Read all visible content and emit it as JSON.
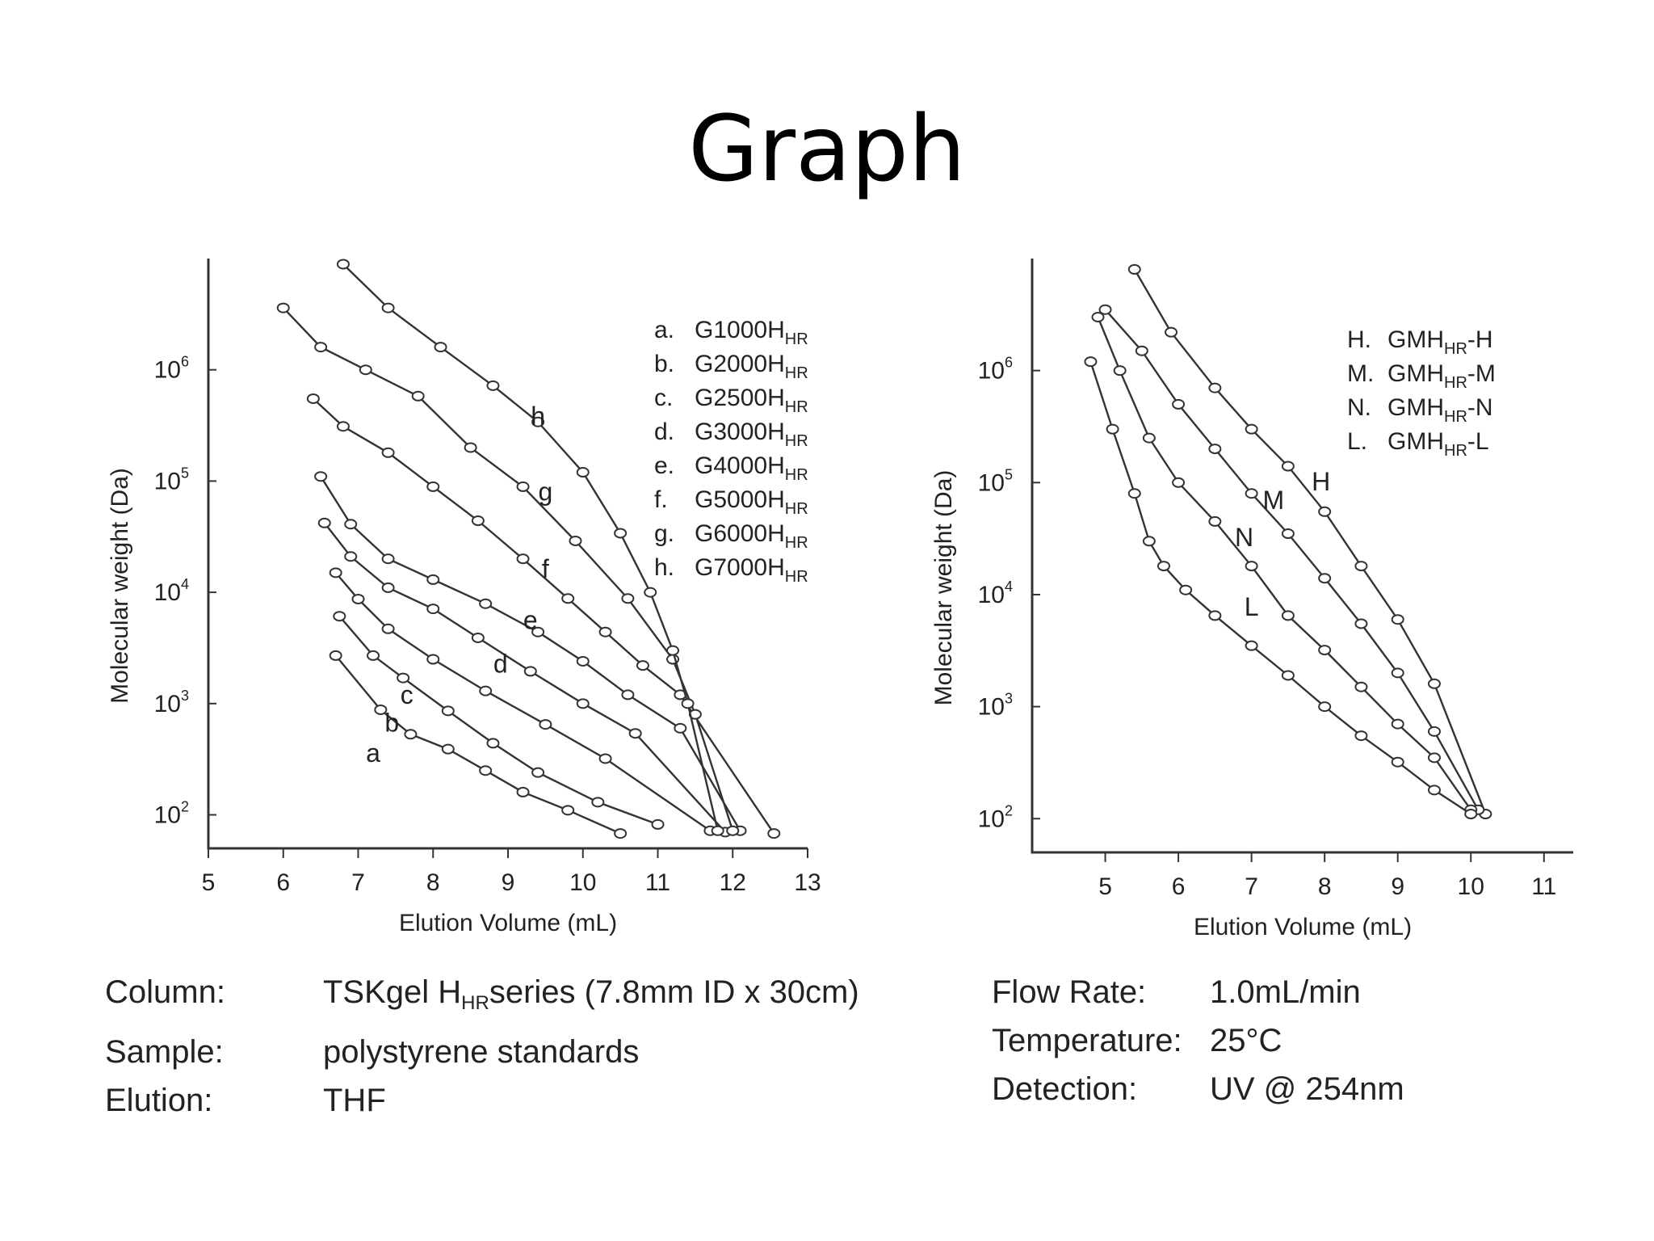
{
  "slide": {
    "title": "Graph"
  },
  "chart_data": [
    {
      "type": "line",
      "xlabel": "Elution Volume (mL)",
      "ylabel": "Molecular weight (Da)",
      "xlim": [
        5,
        13
      ],
      "ylim": [
        50,
        10000000
      ],
      "yscale": "log",
      "x_ticks": [
        "5",
        "6",
        "7",
        "8",
        "9",
        "10",
        "11",
        "12",
        "13"
      ],
      "y_ticks": [
        {
          "base": "10",
          "exp": "2",
          "value": 100
        },
        {
          "base": "10",
          "exp": "3",
          "value": 1000
        },
        {
          "base": "10",
          "exp": "4",
          "value": 10000
        },
        {
          "base": "10",
          "exp": "5",
          "value": 100000
        },
        {
          "base": "10",
          "exp": "6",
          "value": 1000000
        }
      ],
      "grid": false,
      "legend_position": "top-right",
      "legend": [
        {
          "key": "a.",
          "prefix": "G1000H",
          "sub": "HR",
          "suffix": ""
        },
        {
          "key": "b.",
          "prefix": "G2000H",
          "sub": "HR",
          "suffix": ""
        },
        {
          "key": "c.",
          "prefix": "G2500H",
          "sub": "HR",
          "suffix": ""
        },
        {
          "key": "d.",
          "prefix": "G3000H",
          "sub": "HR",
          "suffix": ""
        },
        {
          "key": "e.",
          "prefix": "G4000H",
          "sub": "HR",
          "suffix": ""
        },
        {
          "key": "f.",
          "prefix": "G5000H",
          "sub": "HR",
          "suffix": ""
        },
        {
          "key": "g.",
          "prefix": "G6000H",
          "sub": "HR",
          "suffix": ""
        },
        {
          "key": "h.",
          "prefix": "G7000H",
          "sub": "HR",
          "suffix": ""
        }
      ],
      "series": [
        {
          "name": "a",
          "label_at": [
            7.2,
            300
          ],
          "x": [
            6.7,
            7.3,
            7.7,
            8.2,
            8.7,
            9.2,
            9.8,
            10.5
          ],
          "y": [
            2700,
            880,
            530,
            390,
            250,
            160,
            110,
            68
          ]
        },
        {
          "name": "b",
          "label_at": [
            7.45,
            560
          ],
          "x": [
            6.75,
            7.2,
            7.6,
            8.2,
            8.8,
            9.4,
            10.2,
            11.0
          ],
          "y": [
            6100,
            2700,
            1700,
            860,
            440,
            240,
            130,
            82
          ]
        },
        {
          "name": "c",
          "label_at": [
            7.65,
            1000
          ],
          "x": [
            6.7,
            7.0,
            7.4,
            8.0,
            8.7,
            9.5,
            10.3,
            11.7
          ],
          "y": [
            15000,
            8700,
            4700,
            2500,
            1300,
            650,
            320,
            72
          ]
        },
        {
          "name": "d",
          "label_at": [
            8.9,
            1900
          ],
          "x": [
            6.55,
            6.9,
            7.4,
            8.0,
            8.6,
            9.3,
            10.0,
            10.7,
            11.9
          ],
          "y": [
            42000,
            21000,
            11000,
            7100,
            3900,
            1950,
            1000,
            540,
            70
          ]
        },
        {
          "name": "e",
          "label_at": [
            9.3,
            4700
          ],
          "x": [
            6.5,
            6.9,
            7.4,
            8.0,
            8.7,
            9.4,
            10.0,
            10.6,
            11.3,
            12.1
          ],
          "y": [
            110000,
            41000,
            20000,
            13000,
            7900,
            4400,
            2400,
            1200,
            600,
            72
          ]
        },
        {
          "name": "f",
          "label_at": [
            9.5,
            13500
          ],
          "x": [
            6.4,
            6.8,
            7.4,
            8.0,
            8.6,
            9.2,
            9.8,
            10.3,
            10.8,
            11.3,
            12.55
          ],
          "y": [
            550000,
            310000,
            180000,
            89000,
            44000,
            20000,
            8800,
            4400,
            2200,
            1200,
            68
          ]
        },
        {
          "name": "g",
          "label_at": [
            9.5,
            67000
          ],
          "x": [
            6.0,
            6.5,
            7.1,
            7.8,
            8.5,
            9.2,
            9.9,
            10.6,
            11.2,
            11.5,
            12.0
          ],
          "y": [
            3600000,
            1600000,
            1000000,
            580000,
            200000,
            89000,
            29000,
            8800,
            2500,
            800,
            72
          ]
        },
        {
          "name": "h",
          "label_at": [
            9.4,
            320000
          ],
          "x": [
            6.8,
            7.4,
            8.1,
            8.8,
            9.4,
            10.0,
            10.5,
            10.9,
            11.2,
            11.4,
            11.8
          ],
          "y": [
            8900000,
            3600000,
            1600000,
            720000,
            340000,
            120000,
            34000,
            10000,
            3000,
            1000,
            72
          ]
        }
      ]
    },
    {
      "type": "line",
      "xlabel": "Elution Volume (mL)",
      "ylabel": "Molecular weight (Da)",
      "xlim": [
        4,
        11.4
      ],
      "ylim": [
        50,
        10000000
      ],
      "yscale": "log",
      "x_ticks": [
        "5",
        "6",
        "7",
        "8",
        "9",
        "10",
        "11"
      ],
      "y_ticks": [
        {
          "base": "10",
          "exp": "2",
          "value": 100
        },
        {
          "base": "10",
          "exp": "3",
          "value": 1000
        },
        {
          "base": "10",
          "exp": "4",
          "value": 10000
        },
        {
          "base": "10",
          "exp": "5",
          "value": 100000
        },
        {
          "base": "10",
          "exp": "6",
          "value": 1000000
        }
      ],
      "grid": false,
      "legend_position": "top-right",
      "legend": [
        {
          "key": "H.",
          "prefix": "GMH",
          "sub": "HR",
          "suffix": "-H"
        },
        {
          "key": "M.",
          "prefix": "GMH",
          "sub": "HR",
          "suffix": "-M"
        },
        {
          "key": "N.",
          "prefix": "GMH",
          "sub": "HR",
          "suffix": "-N"
        },
        {
          "key": "L.",
          "prefix": "GMH",
          "sub": "HR",
          "suffix": "-L"
        }
      ],
      "series": [
        {
          "name": "H",
          "label_at": [
            7.95,
            85000
          ],
          "x": [
            5.4,
            5.9,
            6.5,
            7.0,
            7.5,
            8.0,
            8.5,
            9.0,
            9.5,
            10.2
          ],
          "y": [
            8000000,
            2200000,
            700000,
            300000,
            140000,
            55000,
            18000,
            6000,
            1600,
            110
          ]
        },
        {
          "name": "M",
          "label_at": [
            7.3,
            58000
          ],
          "x": [
            5.0,
            5.5,
            6.0,
            6.5,
            7.0,
            7.5,
            8.0,
            8.5,
            9.0,
            9.5,
            10.1
          ],
          "y": [
            3500000,
            1500000,
            500000,
            200000,
            80000,
            35000,
            14000,
            5500,
            2000,
            600,
            120
          ]
        },
        {
          "name": "N",
          "label_at": [
            6.9,
            27000
          ],
          "x": [
            4.9,
            5.2,
            5.6,
            6.0,
            6.5,
            7.0,
            7.5,
            8.0,
            8.5,
            9.0,
            9.5,
            10.0
          ],
          "y": [
            3000000,
            1000000,
            250000,
            100000,
            45000,
            18000,
            6500,
            3200,
            1500,
            700,
            350,
            120
          ]
        },
        {
          "name": "L",
          "label_at": [
            7.0,
            6500
          ],
          "x": [
            4.8,
            5.1,
            5.4,
            5.6,
            5.8,
            6.1,
            6.5,
            7.0,
            7.5,
            8.0,
            8.5,
            9.0,
            9.5,
            10.0
          ],
          "y": [
            1200000,
            300000,
            80000,
            30000,
            18000,
            11000,
            6500,
            3500,
            1900,
            1000,
            550,
            320,
            180,
            110
          ]
        }
      ]
    }
  ],
  "info_left": [
    {
      "key": "Column:",
      "value_prefix": "TSKgel H",
      "value_sub": "HR",
      "value_suffix": "series (7.8mm ID x 30cm)"
    },
    {
      "key": "Sample:",
      "value": "polystyrene standards"
    },
    {
      "key": "Elution:",
      "value": "THF"
    }
  ],
  "info_right": [
    {
      "key": "Flow Rate:",
      "value": "1.0mL/min"
    },
    {
      "key": "Temperature:",
      "value": "25°C"
    },
    {
      "key": "Detection:",
      "value": "UV @ 254nm"
    }
  ]
}
